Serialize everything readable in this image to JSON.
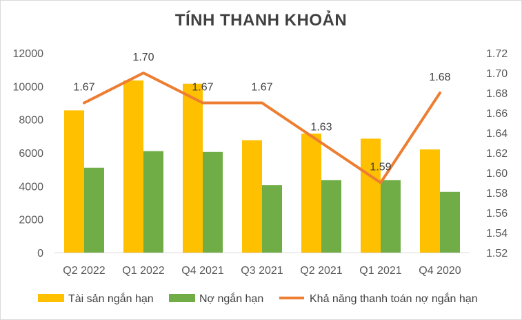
{
  "chart_data": {
    "type": "bar",
    "title": "TÍNH THANH KHOẢN",
    "categories": [
      "Q2 2022",
      "Q1 2022",
      "Q4 2021",
      "Q3 2021",
      "Q2 2021",
      "Q1 2021",
      "Q4 2020"
    ],
    "series": [
      {
        "name": "Tài sản ngắn hạn",
        "type": "bar",
        "axis": "left",
        "color": "#FFC000",
        "values": [
          8550,
          10350,
          10150,
          6750,
          7150,
          6850,
          6200
        ]
      },
      {
        "name": "Nợ ngắn hạn",
        "type": "bar",
        "axis": "left",
        "color": "#70AD47",
        "values": [
          5100,
          6100,
          6050,
          4050,
          4350,
          4350,
          3650
        ]
      },
      {
        "name": "Khả năng thanh toán nợ ngắn hạn",
        "type": "line",
        "axis": "right",
        "color": "#ED7D31",
        "values": [
          1.67,
          1.7,
          1.67,
          1.67,
          1.63,
          1.59,
          1.68
        ],
        "labels": [
          "1.67",
          "1.70",
          "1.67",
          "1.67",
          "1.63",
          "1.59",
          "1.68"
        ]
      }
    ],
    "y_left": {
      "min": 0,
      "max": 12000,
      "step": 2000,
      "ticks": [
        "0",
        "2000",
        "4000",
        "6000",
        "8000",
        "10000",
        "12000"
      ]
    },
    "y_right": {
      "min": 1.52,
      "max": 1.72,
      "step": 0.02,
      "ticks": [
        "1.52",
        "1.54",
        "1.56",
        "1.58",
        "1.60",
        "1.62",
        "1.64",
        "1.66",
        "1.68",
        "1.70",
        "1.72"
      ]
    },
    "grid": false,
    "legend": "bottom"
  }
}
